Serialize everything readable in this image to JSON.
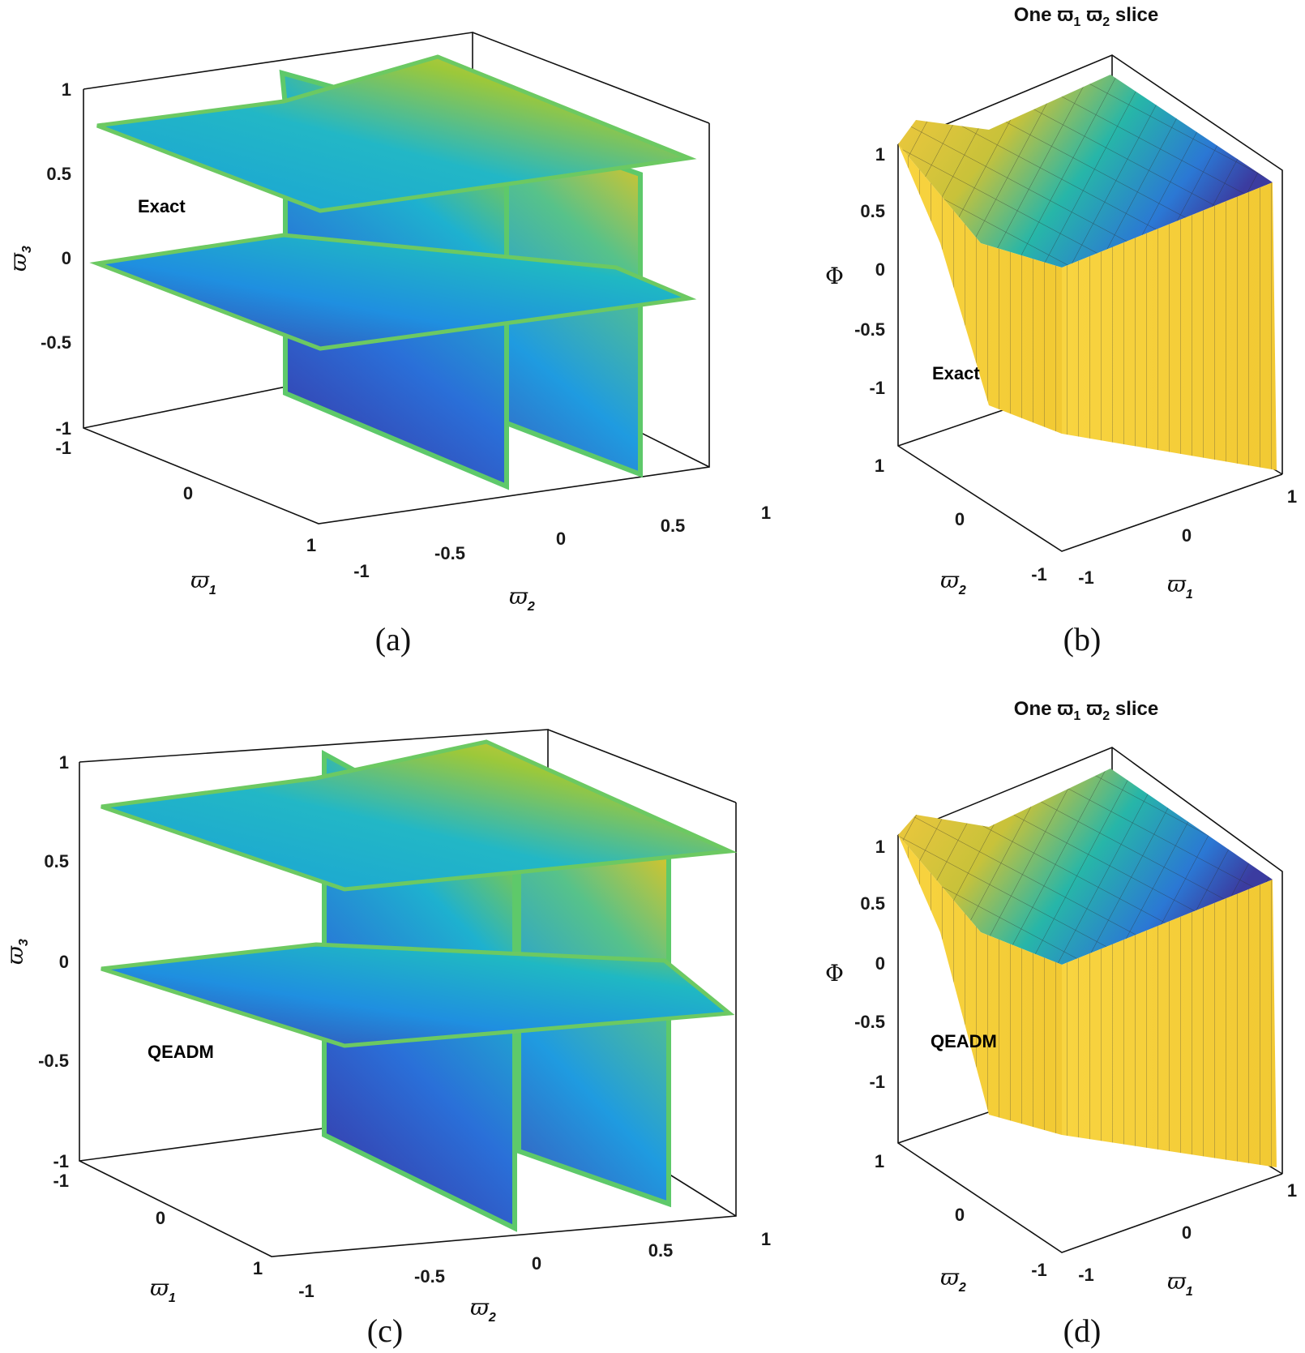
{
  "chart_data": [
    {
      "panel": "a",
      "type": "surface3d",
      "caption": "(a)",
      "annotation": "Exact",
      "x_ticks": [
        "-1",
        "0",
        "1"
      ],
      "y_ticks": [
        "-1",
        "-0.5",
        "0",
        "0.5",
        "1"
      ],
      "z_ticks": [
        "-1",
        "-0.5",
        "0",
        "0.5",
        "1"
      ],
      "xlabel": "ϖ",
      "xlabel_sub": "1",
      "ylabel": "ϖ",
      "ylabel_sub": "2",
      "zlabel": "ϖ",
      "zlabel_sub": "3",
      "xlim": [
        -1,
        1
      ],
      "ylim": [
        -1,
        1
      ],
      "zlim": [
        -1,
        1
      ],
      "planes": [
        {
          "kind": "horizontal",
          "z": 0.75
        },
        {
          "kind": "horizontal",
          "z": 0
        },
        {
          "kind": "vertical",
          "y": -0.25
        },
        {
          "kind": "vertical",
          "y": 0.25
        }
      ],
      "colormap": "parula"
    },
    {
      "panel": "b",
      "type": "surface3d",
      "caption": "(b)",
      "title": "One ϖ",
      "title_sub1": "1",
      "title_mid": " ϖ",
      "title_sub2": "2",
      "title_end": " slice",
      "annotation": "Exact",
      "x_ticks": [
        "-1",
        "0",
        "1"
      ],
      "y_ticks": [
        "-1",
        "0",
        "1"
      ],
      "z_ticks": [
        "-1",
        "-0.5",
        "0",
        "0.5",
        "1"
      ],
      "xlabel": "ϖ",
      "xlabel_sub": "1",
      "ylabel": "ϖ",
      "ylabel_sub": "2",
      "zlabel": "Φ",
      "xlim": [
        -1,
        1
      ],
      "ylim": [
        -1,
        1
      ],
      "colormap": "parula"
    },
    {
      "panel": "c",
      "type": "surface3d",
      "caption": "(c)",
      "annotation": "QEADM",
      "x_ticks": [
        "-1",
        "0",
        "1"
      ],
      "y_ticks": [
        "-1",
        "-0.5",
        "0",
        "0.5",
        "1"
      ],
      "z_ticks": [
        "-1",
        "-0.5",
        "0",
        "0.5",
        "1"
      ],
      "xlabel": "ϖ",
      "xlabel_sub": "1",
      "ylabel": "ϖ",
      "ylabel_sub": "2",
      "zlabel": "ϖ",
      "zlabel_sub": "3",
      "xlim": [
        -1,
        1
      ],
      "ylim": [
        -1,
        1
      ],
      "zlim": [
        -1,
        1
      ],
      "planes": [
        {
          "kind": "horizontal",
          "z": 0.75
        },
        {
          "kind": "horizontal",
          "z": 0
        },
        {
          "kind": "vertical",
          "y": -0.25
        },
        {
          "kind": "vertical",
          "y": 0.25
        }
      ],
      "colormap": "parula"
    },
    {
      "panel": "d",
      "type": "surface3d",
      "caption": "(d)",
      "title": "One ϖ",
      "title_sub1": "1",
      "title_mid": " ϖ",
      "title_sub2": "2",
      "title_end": " slice",
      "annotation": "QEADM",
      "x_ticks": [
        "-1",
        "0",
        "1"
      ],
      "y_ticks": [
        "-1",
        "0",
        "1"
      ],
      "z_ticks": [
        "-1",
        "-0.5",
        "0",
        "0.5",
        "1"
      ],
      "xlabel": "ϖ",
      "xlabel_sub": "1",
      "ylabel": "ϖ",
      "ylabel_sub": "2",
      "zlabel": "Φ",
      "xlim": [
        -1,
        1
      ],
      "ylim": [
        -1,
        1
      ],
      "colormap": "parula"
    }
  ]
}
